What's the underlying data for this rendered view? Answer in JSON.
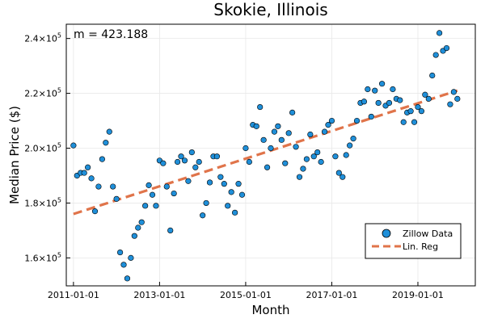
{
  "chart_data": {
    "type": "scatter",
    "title": "Skokie, Illinois",
    "xlabel": "Month",
    "ylabel": "Median Price ($)",
    "annotation": "m = 423.188",
    "x_ticks": [
      "2011-01-01",
      "2013-01-01",
      "2015-01-01",
      "2017-01-01",
      "2019-01-01"
    ],
    "x_range": [
      "2010-11-01",
      "2020-05-01"
    ],
    "y_ticks": [
      {
        "value": 160000,
        "base": "1.6×10",
        "exp": "5"
      },
      {
        "value": 180000,
        "base": "1.8×10",
        "exp": "5"
      },
      {
        "value": 200000,
        "base": "2.0×10",
        "exp": "5"
      },
      {
        "value": 220000,
        "base": "2.2×10",
        "exp": "5"
      },
      {
        "value": 240000,
        "base": "2.4×10",
        "exp": "5"
      }
    ],
    "ylim": [
      149800,
      245200
    ],
    "grid": true,
    "legend_position": "bottom-right",
    "series": [
      {
        "name": "Zillow Data",
        "kind": "scatter",
        "color": "#1f8fd9",
        "x": [
          "2011-01-01",
          "2011-02-01",
          "2011-03-01",
          "2011-04-01",
          "2011-05-01",
          "2011-06-01",
          "2011-07-01",
          "2011-08-01",
          "2011-09-01",
          "2011-10-01",
          "2011-11-01",
          "2011-12-01",
          "2012-01-01",
          "2012-02-01",
          "2012-03-01",
          "2012-04-01",
          "2012-05-01",
          "2012-06-01",
          "2012-07-01",
          "2012-08-01",
          "2012-09-01",
          "2012-10-01",
          "2012-11-01",
          "2012-12-01",
          "2013-01-01",
          "2013-02-01",
          "2013-03-01",
          "2013-04-01",
          "2013-05-01",
          "2013-06-01",
          "2013-07-01",
          "2013-08-01",
          "2013-09-01",
          "2013-10-01",
          "2013-11-01",
          "2013-12-01",
          "2014-01-01",
          "2014-02-01",
          "2014-03-01",
          "2014-04-01",
          "2014-05-01",
          "2014-06-01",
          "2014-07-01",
          "2014-08-01",
          "2014-09-01",
          "2014-10-01",
          "2014-11-01",
          "2014-12-01",
          "2015-01-01",
          "2015-02-01",
          "2015-03-01",
          "2015-04-01",
          "2015-05-01",
          "2015-06-01",
          "2015-07-01",
          "2015-08-01",
          "2015-09-01",
          "2015-10-01",
          "2015-11-01",
          "2015-12-01",
          "2016-01-01",
          "2016-02-01",
          "2016-03-01",
          "2016-04-01",
          "2016-05-01",
          "2016-06-01",
          "2016-07-01",
          "2016-08-01",
          "2016-09-01",
          "2016-10-01",
          "2016-11-01",
          "2016-12-01",
          "2017-01-01",
          "2017-02-01",
          "2017-03-01",
          "2017-04-01",
          "2017-05-01",
          "2017-06-01",
          "2017-07-01",
          "2017-08-01",
          "2017-09-01",
          "2017-10-01",
          "2017-11-01",
          "2017-12-01",
          "2018-01-01",
          "2018-02-01",
          "2018-03-01",
          "2018-04-01",
          "2018-05-01",
          "2018-06-01",
          "2018-07-01",
          "2018-08-01",
          "2018-09-01",
          "2018-10-01",
          "2018-11-01",
          "2018-12-01",
          "2019-01-01",
          "2019-02-01",
          "2019-03-01",
          "2019-04-01",
          "2019-05-01",
          "2019-06-01",
          "2019-07-01",
          "2019-08-01",
          "2019-09-01",
          "2019-10-01",
          "2019-11-01",
          "2019-12-01"
        ],
        "y": [
          201000,
          190000,
          191000,
          191000,
          193000,
          189000,
          177000,
          186000,
          196000,
          202000,
          206000,
          186000,
          181500,
          162000,
          157500,
          152500,
          160000,
          168000,
          171000,
          173000,
          179000,
          186500,
          183000,
          179000,
          195500,
          194500,
          186000,
          170000,
          183500,
          195000,
          197000,
          195500,
          188000,
          198500,
          193000,
          195000,
          175500,
          180000,
          187500,
          197000,
          197000,
          189500,
          187000,
          179000,
          184000,
          176500,
          187000,
          183000,
          200000,
          195000,
          208500,
          208000,
          215000,
          203000,
          193000,
          200000,
          206000,
          208000,
          203000,
          194500,
          205500,
          213000,
          200500,
          189500,
          192500,
          196000,
          205000,
          197000,
          198500,
          195000,
          206000,
          208500,
          210000,
          197000,
          191000,
          189500,
          197500,
          201000,
          203500,
          210000,
          216500,
          217000,
          221500,
          211500,
          221000,
          216500,
          223500,
          215500,
          216500,
          221500,
          218000,
          217500,
          209500,
          213000,
          213500,
          209500,
          215000,
          213500,
          219500,
          218000,
          226500,
          234000,
          242000,
          235500,
          236500,
          216000,
          220500,
          218000
        ]
      },
      {
        "name": "Lin. Reg",
        "kind": "line",
        "color": "#e0744a",
        "x": [
          "2011-01-01",
          "2019-12-01"
        ],
        "y": [
          176000,
          221000
        ]
      }
    ]
  }
}
